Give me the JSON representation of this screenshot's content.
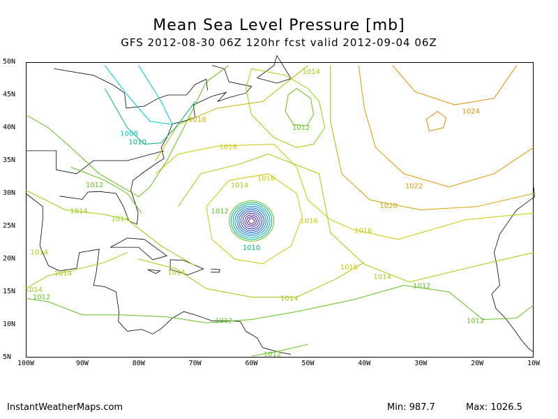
{
  "header": {
    "title": "Mean Sea Level Pressure [mb]",
    "subtitle": "GFS 2012-08-30 06Z 120hr fcst valid 2012-09-04 06Z"
  },
  "axes": {
    "lat_ticks": [
      "50N",
      "45N",
      "40N",
      "35N",
      "30N",
      "25N",
      "20N",
      "15N",
      "10N",
      "5N"
    ],
    "lon_ticks": [
      "100W",
      "90W",
      "80W",
      "70W",
      "60W",
      "50W",
      "40W",
      "30W",
      "20W",
      "10W"
    ]
  },
  "isobar_labels": [
    {
      "text": "1014",
      "lon": -49.4,
      "lat": 48.5
    },
    {
      "text": "1018",
      "lon": -69.6,
      "lat": 41.2
    },
    {
      "text": "1012",
      "lon": -51.2,
      "lat": 40.0
    },
    {
      "text": "1024",
      "lon": -21.1,
      "lat": 42.5
    },
    {
      "text": "1008",
      "lon": -81.7,
      "lat": 39.1
    },
    {
      "text": "1010",
      "lon": -80.2,
      "lat": 37.8
    },
    {
      "text": "1016",
      "lon": -64.1,
      "lat": 37.1
    },
    {
      "text": "1016",
      "lon": -57.4,
      "lat": 32.3
    },
    {
      "text": "1014",
      "lon": -62.1,
      "lat": 31.2
    },
    {
      "text": "1022",
      "lon": -31.2,
      "lat": 31.1
    },
    {
      "text": "1012",
      "lon": -87.8,
      "lat": 31.3
    },
    {
      "text": "1020",
      "lon": -35.7,
      "lat": 28.1
    },
    {
      "text": "1014",
      "lon": -90.6,
      "lat": 27.3
    },
    {
      "text": "1012",
      "lon": -65.6,
      "lat": 27.3
    },
    {
      "text": "1014",
      "lon": -83.3,
      "lat": 26.1
    },
    {
      "text": "1016",
      "lon": -49.8,
      "lat": 25.8
    },
    {
      "text": "1016",
      "lon": -40.2,
      "lat": 24.3
    },
    {
      "text": "1010",
      "lon": -60.0,
      "lat": 21.7
    },
    {
      "text": "1014",
      "lon": -97.6,
      "lat": 21.0
    },
    {
      "text": "1016",
      "lon": -42.7,
      "lat": 18.7
    },
    {
      "text": "1014",
      "lon": -73.3,
      "lat": 17.9
    },
    {
      "text": "1014",
      "lon": -93.4,
      "lat": 17.8
    },
    {
      "text": "1014",
      "lon": -36.8,
      "lat": 17.3
    },
    {
      "text": "1012",
      "lon": -29.8,
      "lat": 15.9
    },
    {
      "text": "1014",
      "lon": -98.6,
      "lat": 15.3
    },
    {
      "text": "1012",
      "lon": -97.2,
      "lat": 14.2
    },
    {
      "text": "1014",
      "lon": -53.3,
      "lat": 14.0
    },
    {
      "text": "1012",
      "lon": -64.9,
      "lat": 10.6
    },
    {
      "text": "1012",
      "lon": -20.3,
      "lat": 10.6
    },
    {
      "text": "1012",
      "lon": -56.3,
      "lat": 5.5
    }
  ],
  "colors": {
    "c1008": "#00c8c8",
    "c1010": "#00b080",
    "c1012": "#60c020",
    "c1014": "#9acd10",
    "c1016": "#c8c800",
    "c1018": "#c8b000",
    "c1020": "#d8a000",
    "c1022": "#e09600",
    "c1024": "#e08a00",
    "storm": "#0030c8",
    "land": "#000000"
  },
  "footer": {
    "source": "InstantWeatherMaps.com",
    "min": "Min:  987.7",
    "max": "Max: 1026.5"
  }
}
